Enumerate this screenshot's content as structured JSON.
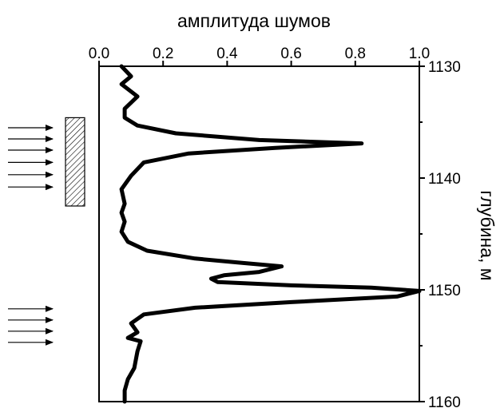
{
  "chart_data": {
    "type": "line",
    "title": "",
    "xlabel": "амплитуда шумов",
    "ylabel": "глубина, м",
    "xlim": [
      0.0,
      1.0
    ],
    "ylim": [
      1130,
      1160
    ],
    "y_inverted": true,
    "x_axis_position": "top",
    "y_axis_position": "right",
    "grid": false,
    "legend": "none",
    "x_ticks": [
      {
        "value": 0.0,
        "label": "0.0"
      },
      {
        "value": 0.2,
        "label": "0.2"
      },
      {
        "value": 0.4,
        "label": "0.4"
      },
      {
        "value": 0.6,
        "label": "0.6"
      },
      {
        "value": 0.8,
        "label": "0.8"
      },
      {
        "value": 1.0,
        "label": "1.0"
      }
    ],
    "y_ticks": [
      {
        "value": 1130,
        "label": "1130"
      },
      {
        "value": 1140,
        "label": "1140"
      },
      {
        "value": 1150,
        "label": "1150"
      },
      {
        "value": 1160,
        "label": "1160"
      }
    ],
    "series": [
      {
        "color": "#000000",
        "points": [
          {
            "x": 0.07,
            "y": 1130.0
          },
          {
            "x": 0.1,
            "y": 1130.9
          },
          {
            "x": 0.07,
            "y": 1131.6
          },
          {
            "x": 0.12,
            "y": 1132.7
          },
          {
            "x": 0.08,
            "y": 1133.8
          },
          {
            "x": 0.08,
            "y": 1134.6
          },
          {
            "x": 0.12,
            "y": 1135.3
          },
          {
            "x": 0.24,
            "y": 1136.0
          },
          {
            "x": 0.5,
            "y": 1136.6
          },
          {
            "x": 0.82,
            "y": 1136.9
          },
          {
            "x": 0.55,
            "y": 1137.3
          },
          {
            "x": 0.28,
            "y": 1137.8
          },
          {
            "x": 0.14,
            "y": 1138.6
          },
          {
            "x": 0.1,
            "y": 1139.8
          },
          {
            "x": 0.07,
            "y": 1141.0
          },
          {
            "x": 0.08,
            "y": 1142.3
          },
          {
            "x": 0.07,
            "y": 1143.1
          },
          {
            "x": 0.08,
            "y": 1143.9
          },
          {
            "x": 0.07,
            "y": 1144.8
          },
          {
            "x": 0.09,
            "y": 1145.7
          },
          {
            "x": 0.15,
            "y": 1146.5
          },
          {
            "x": 0.3,
            "y": 1147.2
          },
          {
            "x": 0.45,
            "y": 1147.6
          },
          {
            "x": 0.57,
            "y": 1147.9
          },
          {
            "x": 0.5,
            "y": 1148.4
          },
          {
            "x": 0.39,
            "y": 1148.7
          },
          {
            "x": 0.35,
            "y": 1149.0
          },
          {
            "x": 0.37,
            "y": 1149.3
          },
          {
            "x": 0.6,
            "y": 1149.6
          },
          {
            "x": 0.85,
            "y": 1149.8
          },
          {
            "x": 1.0,
            "y": 1150.1
          },
          {
            "x": 0.93,
            "y": 1150.6
          },
          {
            "x": 0.6,
            "y": 1151.1
          },
          {
            "x": 0.3,
            "y": 1151.6
          },
          {
            "x": 0.14,
            "y": 1152.2
          },
          {
            "x": 0.1,
            "y": 1153.0
          },
          {
            "x": 0.12,
            "y": 1153.8
          },
          {
            "x": 0.09,
            "y": 1154.3
          },
          {
            "x": 0.13,
            "y": 1154.6
          },
          {
            "x": 0.12,
            "y": 1155.5
          },
          {
            "x": 0.11,
            "y": 1157.0
          },
          {
            "x": 0.09,
            "y": 1158.0
          },
          {
            "x": 0.08,
            "y": 1159.0
          },
          {
            "x": 0.08,
            "y": 1160.0
          }
        ]
      }
    ],
    "annotations": {
      "hatched_interval": {
        "depth_from": 1134.6,
        "depth_to": 1142.5
      },
      "arrow_groups": [
        {
          "depths": [
            1135.5,
            1136.5,
            1137.5,
            1138.6,
            1139.7,
            1140.8
          ],
          "direction": "right"
        },
        {
          "depths": [
            1151.7,
            1152.7,
            1153.7,
            1154.7
          ],
          "direction": "right"
        }
      ]
    }
  }
}
